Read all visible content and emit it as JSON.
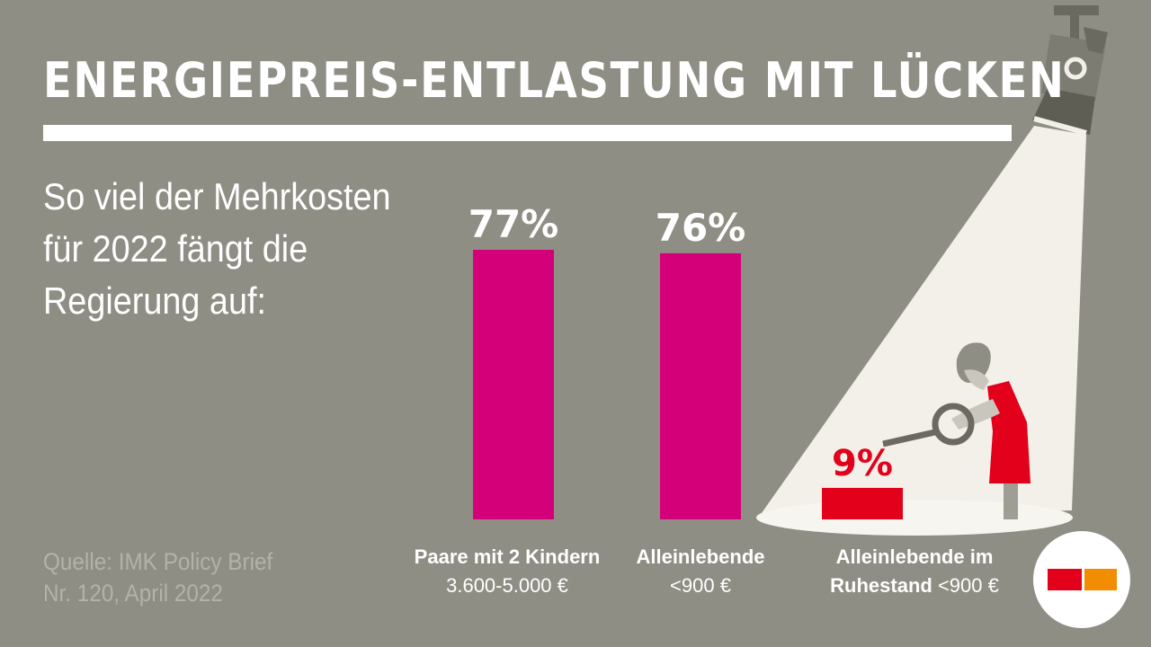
{
  "title": "ENERGIEPREIS-ENTLASTUNG MIT LÜCKEN",
  "subtitle_lines": [
    "So viel der Mehrkosten",
    "für 2022 fängt die",
    "Regierung auf:"
  ],
  "source_lines": [
    "Quelle: IMK Policy Brief",
    "Nr. 120, April 2022"
  ],
  "colors": {
    "background": "#8f8e84",
    "bar_magenta": "#d4007a",
    "bar_red": "#e3001b",
    "spotlight": "#f2f0e9",
    "logo_red": "#e3001b",
    "logo_orange": "#f28c00"
  },
  "chart_data": {
    "type": "bar",
    "categories": [
      "Paare mit 2 Kindern 3.600-5.000 €",
      "Alleinlebende <900 €",
      "Alleinlebende im Ruhestand <900 €"
    ],
    "values": [
      77,
      76,
      9
    ],
    "value_labels": [
      "77%",
      "76%",
      "9%"
    ],
    "unit": "%",
    "ylim": [
      0,
      77
    ]
  },
  "category_labels": [
    {
      "bold": "Paare mit 2 Kindern",
      "normal": "3.600-5.000 €"
    },
    {
      "bold": "Alleinlebende",
      "normal": "<900 €"
    },
    {
      "bold": "Alleinlebende im",
      "bold2": "Ruhestand",
      "normal2": " <900 €"
    }
  ],
  "icons": [
    "spotlight-icon",
    "woman-with-magnifier-icon",
    "brand-logo-icon"
  ]
}
